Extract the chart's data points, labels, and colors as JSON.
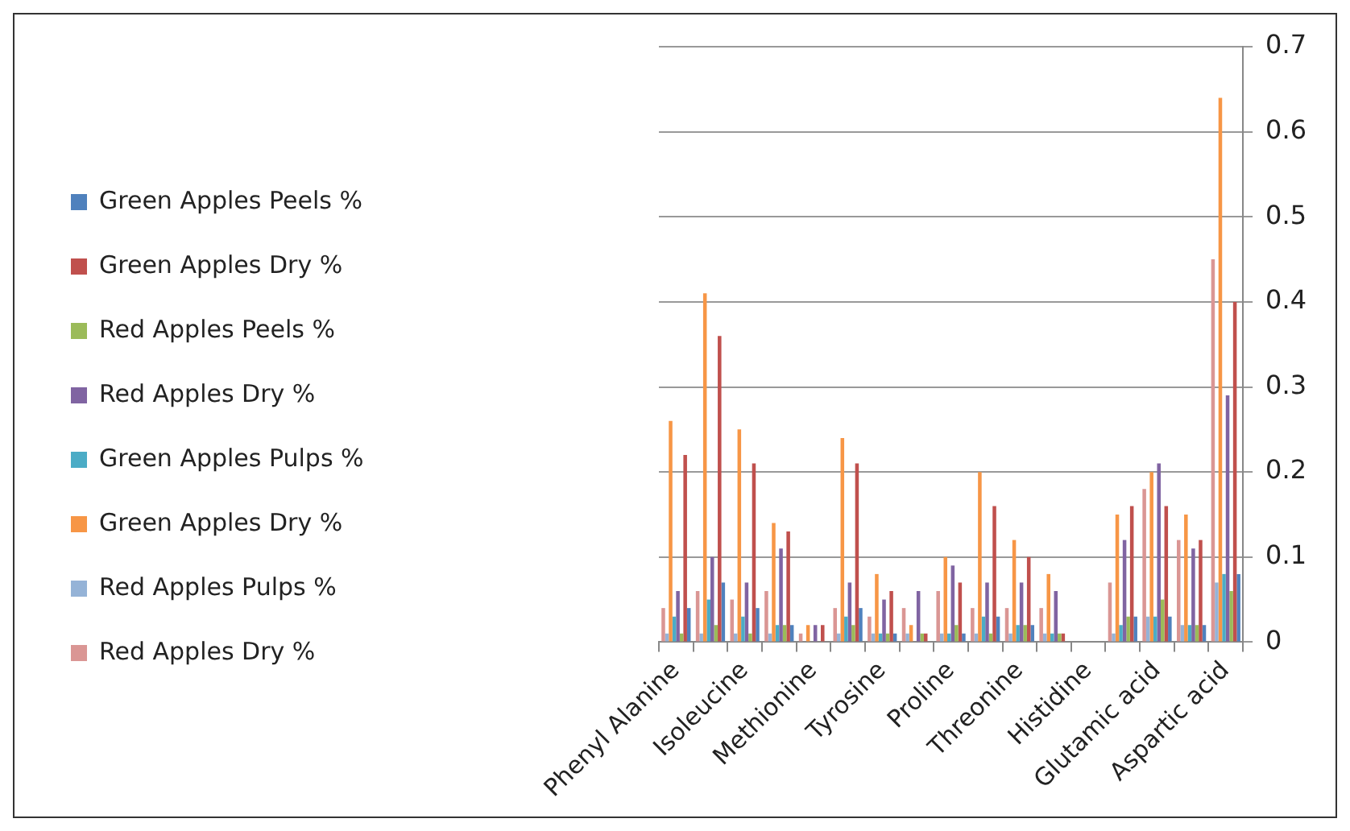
{
  "chart_data": {
    "type": "bar",
    "categories": [
      "Phenyl Alanine",
      null,
      "Isoleucine",
      null,
      "Methionine",
      null,
      "Tyrosine",
      null,
      "Proline",
      null,
      "Threonine",
      null,
      "Histidine",
      null,
      "Glutamic acid",
      null,
      "Aspartic acid"
    ],
    "series": [
      {
        "name": "Red Apples Dry %",
        "color": "#da9694",
        "values": [
          0.04,
          0.06,
          0.05,
          0.06,
          0.01,
          0.04,
          0.03,
          0.04,
          0.06,
          0.04,
          0.04,
          0.04,
          0,
          0.07,
          0.18,
          0.12,
          0.45
        ]
      },
      {
        "name": "Red Apples Pulps %",
        "color": "#95b3d7",
        "values": [
          0.01,
          0.01,
          0.01,
          0.01,
          0,
          0.01,
          0.01,
          0.01,
          0.01,
          0.01,
          0.01,
          0.01,
          0,
          0.01,
          0.03,
          0.02,
          0.07
        ]
      },
      {
        "name": "Green Apples Dry %",
        "color": "#f79646",
        "values": [
          0.26,
          0.41,
          0.25,
          0.14,
          0.02,
          0.24,
          0.08,
          0.02,
          0.1,
          0.2,
          0.12,
          0.08,
          0,
          0.15,
          0.2,
          0.15,
          0.64
        ]
      },
      {
        "name": "Green Apples Pulps %",
        "color": "#4bacc6",
        "values": [
          0.03,
          0.05,
          0.03,
          0.02,
          0,
          0.03,
          0.01,
          0,
          0.01,
          0.03,
          0.02,
          0.01,
          0,
          0.02,
          0.03,
          0.02,
          0.08
        ]
      },
      {
        "name": "Red Apples Dry %",
        "color": "#8064a2",
        "values": [
          0.06,
          0.1,
          0.07,
          0.11,
          0.02,
          0.07,
          0.05,
          0.06,
          0.09,
          0.07,
          0.07,
          0.06,
          0,
          0.12,
          0.21,
          0.11,
          0.29
        ]
      },
      {
        "name": "Red Apples Peels %",
        "color": "#9bbb59",
        "values": [
          0.01,
          0.02,
          0.01,
          0.02,
          0,
          0.02,
          0.01,
          0.01,
          0.02,
          0.01,
          0.02,
          0.01,
          0,
          0.03,
          0.05,
          0.02,
          0.06
        ]
      },
      {
        "name": "Green Apples Dry %",
        "color": "#c0504d",
        "values": [
          0.22,
          0.36,
          0.21,
          0.13,
          0.02,
          0.21,
          0.06,
          0.01,
          0.07,
          0.16,
          0.1,
          0.01,
          0,
          0.16,
          0.16,
          0.12,
          0.4
        ]
      },
      {
        "name": "Green Apples Peels %",
        "color": "#4f81bd",
        "values": [
          0.04,
          0.07,
          0.04,
          0.02,
          0,
          0.04,
          0.01,
          0,
          0.01,
          0.03,
          0.02,
          0,
          0,
          0.03,
          0.03,
          0.02,
          0.08
        ]
      }
    ],
    "ylim": [
      0,
      0.7
    ],
    "yticks": [
      0,
      0.1,
      0.2,
      0.3,
      0.4,
      0.5,
      0.6,
      0.7
    ],
    "grid": "y",
    "legend": "left"
  }
}
